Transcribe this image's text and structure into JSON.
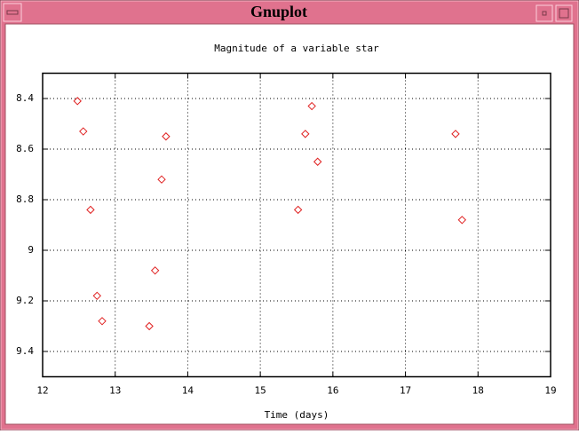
{
  "window": {
    "title": "Gnuplot"
  },
  "chart_data": {
    "type": "scatter",
    "title": "Magnitude of a variable star",
    "x_label": "Time (days)",
    "series": [
      {
        "color": "#e02020",
        "x": [
          12.48,
          12.56,
          12.66,
          12.75,
          12.82,
          13.47,
          13.55,
          13.64,
          13.7,
          15.52,
          15.62,
          15.71,
          15.79,
          17.69,
          17.78
        ],
        "values": [
          8.41,
          8.53,
          8.84,
          9.18,
          9.28,
          9.3,
          9.08,
          8.72,
          8.55,
          8.84,
          8.54,
          8.43,
          8.65,
          8.54,
          8.88
        ]
      }
    ],
    "xlim": [
      12,
      19
    ],
    "xticks": [
      12,
      13,
      14,
      15,
      16,
      17,
      18,
      19
    ],
    "ylim": [
      8.3,
      9.5
    ],
    "yticks": [
      8.4,
      8.6,
      8.8,
      9,
      9.2,
      9.4
    ],
    "y_reversed": true,
    "grid": true
  }
}
